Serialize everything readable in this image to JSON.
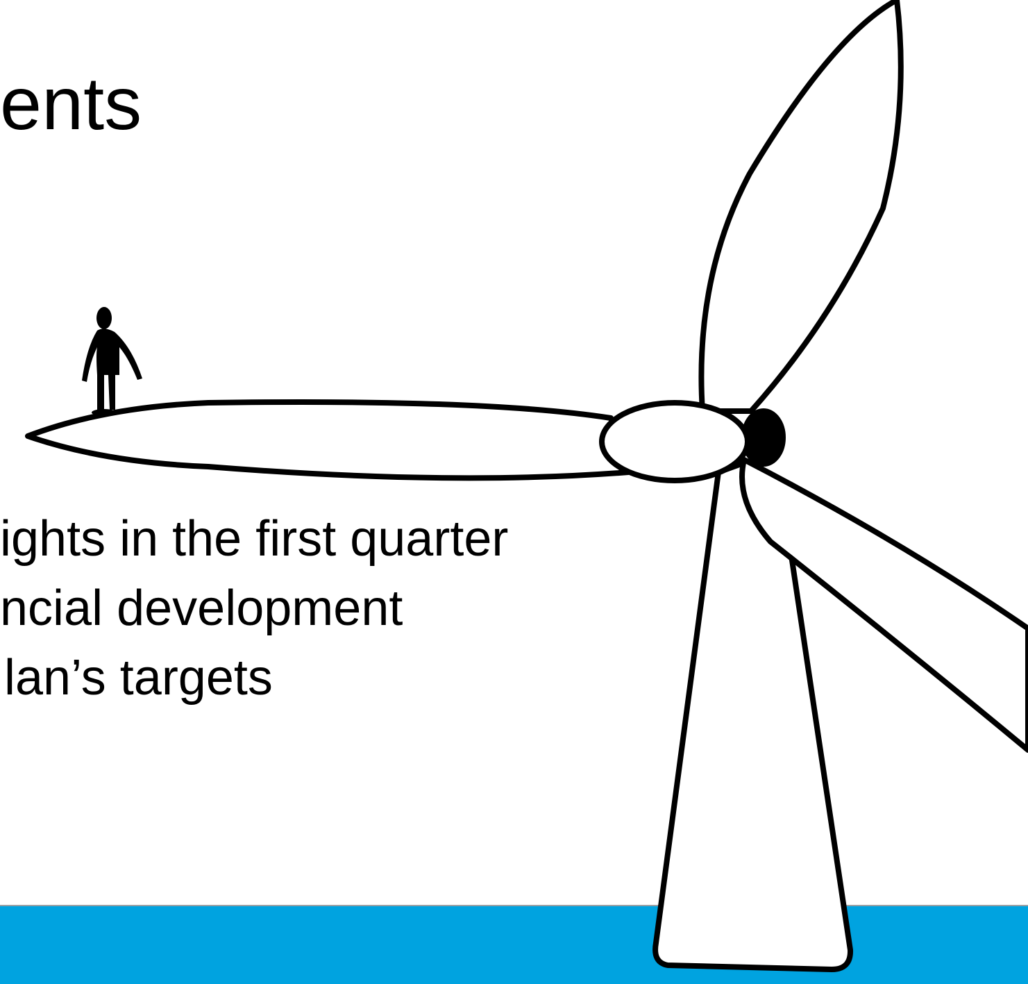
{
  "title": "ents",
  "bullets": [
    "ights in the first quarter",
    "ncial development",
    "lan’s targets"
  ]
}
